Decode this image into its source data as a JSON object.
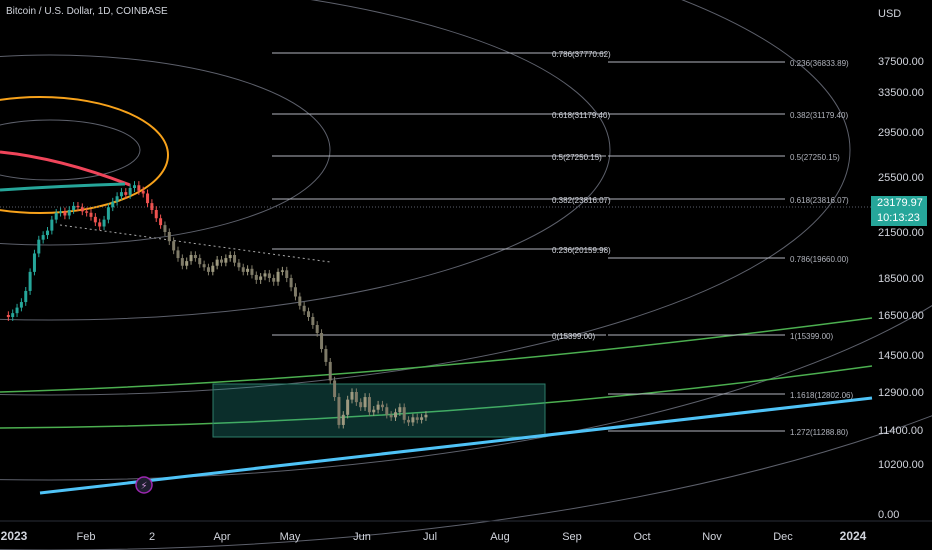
{
  "header": {
    "symbol_title": "Bitcoin / U.S. Dollar, 1D, COINBASE"
  },
  "price_axis": {
    "currency_label": "USD",
    "last_price": "23179.97",
    "countdown": "10:13:23",
    "ticks": [
      "37500.00",
      "33500.00",
      "29500.00",
      "25500.00",
      "21500.00",
      "18500.00",
      "16500.00",
      "14500.00",
      "12900.00",
      "11400.00",
      "10200.00",
      "0.00"
    ]
  },
  "time_axis": {
    "labels": [
      "2023",
      "Feb",
      "2",
      "Apr",
      "May",
      "Jun",
      "Jul",
      "Aug",
      "Sep",
      "Oct",
      "Nov",
      "Dec",
      "2024"
    ]
  },
  "fib_left_labels": [
    "0.786(37770.62)",
    "0.618(31179.40)",
    "0.5(27250.15)",
    "0.382(23816.07)",
    "0.236(20159.98)",
    "0(15399.00)"
  ],
  "fib_right_labels": [
    "0.236(36833.89)",
    "0.382(31179.40)",
    "0.5(27250.15)",
    "0.618(23816.07)",
    "0.786(19660.00)",
    "1(15399.00)",
    "1.1618(12802.06)",
    "1.272(11288.80)"
  ],
  "chart_data": {
    "type": "candlestick",
    "title": "Bitcoin / U.S. Dollar, 1D, COINBASE",
    "ylabel": "USD",
    "y_axis_ticks": [
      0,
      10200,
      11400,
      12900,
      14500,
      16500,
      18500,
      21500,
      25500,
      29500,
      33500,
      37500
    ],
    "x_axis_labels": [
      "2023",
      "Feb",
      "2",
      "Apr",
      "May",
      "Jun",
      "Jul",
      "Aug",
      "Sep",
      "Oct",
      "Nov",
      "Dec",
      "2024"
    ],
    "last_price": 23179.97,
    "fib_retracement": [
      {
        "level": "0.786",
        "price": 37770.62
      },
      {
        "level": "0.618",
        "price": 31179.4
      },
      {
        "level": "0.5",
        "price": 27250.15
      },
      {
        "level": "0.382",
        "price": 23816.07
      },
      {
        "level": "0.236",
        "price": 20159.98
      },
      {
        "level": "0",
        "price": 15399.0
      }
    ],
    "fib_extension": [
      {
        "level": "0.236",
        "price": 36833.89
      },
      {
        "level": "0.382",
        "price": 31179.4
      },
      {
        "level": "0.5",
        "price": 27250.15
      },
      {
        "level": "0.618",
        "price": 23816.07
      },
      {
        "level": "0.786",
        "price": 19660.0
      },
      {
        "level": "1",
        "price": 15399.0
      },
      {
        "level": "1.1618",
        "price": 12802.06
      },
      {
        "level": "1.272",
        "price": 11288.8
      }
    ],
    "support_zone": {
      "low": 11400,
      "high": 12900
    },
    "series": [
      {
        "values": [
          16500,
          16400,
          16600,
          16900,
          17200,
          17800,
          18900,
          20100,
          21000,
          21300,
          21600,
          22400,
          22900,
          23000,
          22700,
          23100,
          23400,
          23300,
          23000,
          22900,
          22600,
          22200,
          21900,
          22400,
          23300,
          23700,
          24100,
          24400,
          24200,
          24700,
          24900,
          24500,
          24300,
          23600,
          23100,
          22500,
          22000,
          21500,
          20900,
          20300,
          19800,
          19300,
          19600,
          20000,
          19800,
          19400,
          19200,
          18900,
          19300,
          19700,
          19500,
          19800,
          20000,
          19500,
          19200,
          18900,
          19100,
          18700,
          18400,
          18600,
          18800,
          18500,
          18300,
          18900,
          19000,
          18500,
          18000,
          17500,
          17000,
          16700,
          16400,
          16000,
          15600,
          14800,
          14200,
          13400,
          12700,
          11600,
          12000,
          12600,
          12900,
          12500,
          12300,
          12700,
          12100,
          12200,
          12400,
          12300,
          12000,
          11900,
          12100,
          12300,
          11800,
          11700,
          11900,
          11800,
          11900,
          12000
        ]
      }
    ]
  }
}
